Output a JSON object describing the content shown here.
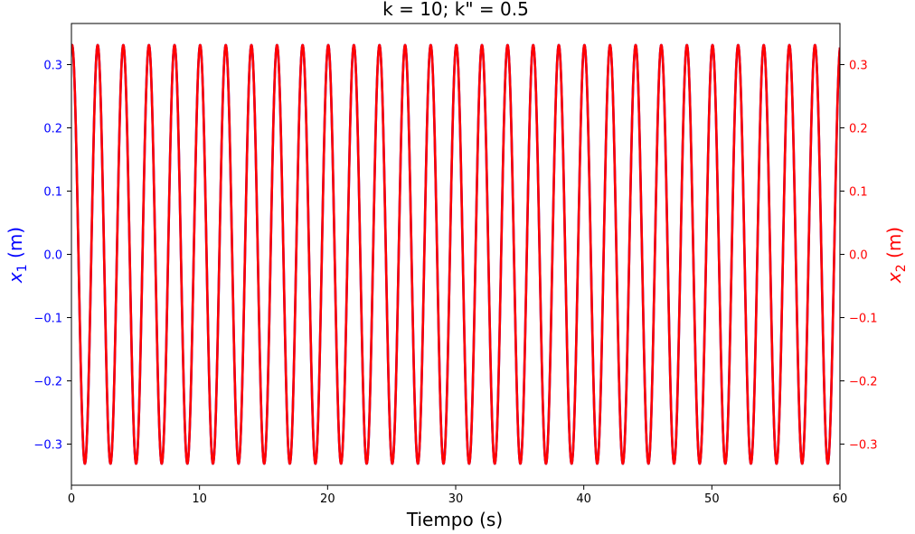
{
  "chart_data": {
    "type": "line",
    "title": "k = 10; k\" = 0.5",
    "xlabel": "Tiempo (s)",
    "ylabel_left": {
      "base": "x",
      "subscript": "1",
      "unit": "(m)"
    },
    "ylabel_right": {
      "base": "x",
      "subscript": "2",
      "unit": "(m)"
    },
    "xlim": [
      0,
      60
    ],
    "ylim": [
      -0.365,
      0.365
    ],
    "x_ticks": [
      0,
      10,
      20,
      30,
      40,
      50,
      60
    ],
    "x_tick_labels": [
      "0",
      "10",
      "20",
      "30",
      "40",
      "50",
      "60"
    ],
    "y_ticks": [
      -0.3,
      -0.2,
      -0.1,
      0.0,
      0.1,
      0.2,
      0.3
    ],
    "y_tick_labels": [
      "−0.3",
      "−0.2",
      "−0.1",
      "0.0",
      "0.1",
      "0.2",
      "0.3"
    ],
    "grid": false,
    "series": [
      {
        "axis": "left",
        "color": "#0000ff",
        "model": {
          "function": "sine",
          "amplitude": 0.331,
          "period": 2.0,
          "phase_time": -0.45
        },
        "x_range": [
          0,
          60
        ]
      },
      {
        "axis": "right",
        "color": "#ff0000",
        "model": {
          "function": "sine",
          "amplitude": 0.331,
          "period": 2.0,
          "phase_time": -0.45
        },
        "x_range": [
          0,
          60
        ]
      }
    ],
    "colors": {
      "left_axis": "#0000ff",
      "right_axis": "#ff0000",
      "frame": "#000000"
    }
  }
}
